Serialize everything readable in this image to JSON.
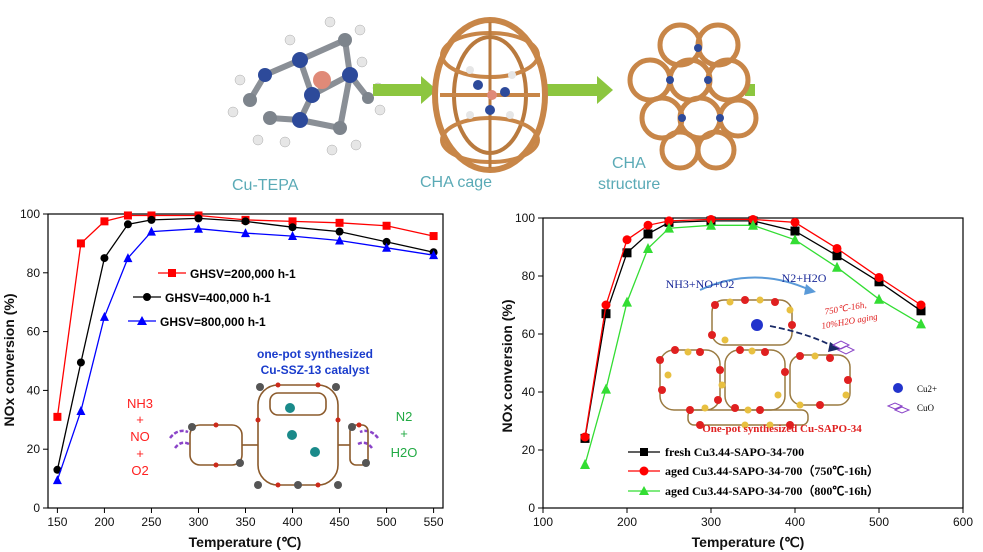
{
  "top_labels": {
    "molecule": "Cu-TEPA",
    "cage": "CHA cage",
    "structure_l1": "CHA",
    "structure_l2": "structure"
  },
  "chart_data": [
    {
      "type": "line",
      "xlabel": "Temperature (℃)",
      "ylabel": "NOx conversion (%)",
      "xlim": [
        140,
        560
      ],
      "ylim": [
        0,
        100
      ],
      "xticks": [
        150,
        200,
        250,
        300,
        350,
        400,
        450,
        500,
        550
      ],
      "yticks": [
        0,
        20,
        40,
        60,
        80,
        100
      ],
      "grid": false,
      "legend_position": "top-right",
      "series": [
        {
          "name": "GHSV=200,000 h-1",
          "color": "#ff0000",
          "marker": "square",
          "x": [
            150,
            175,
            200,
            225,
            250,
            300,
            350,
            400,
            450,
            500,
            550
          ],
          "y": [
            31,
            90,
            97.5,
            99.5,
            99.5,
            99.5,
            98,
            97.5,
            97,
            96,
            92.5
          ]
        },
        {
          "name": "GHSV=400,000 h-1",
          "color": "#000000",
          "marker": "circle",
          "x": [
            150,
            175,
            200,
            225,
            250,
            300,
            350,
            400,
            450,
            500,
            550
          ],
          "y": [
            13,
            49.5,
            85,
            96.5,
            98,
            98.5,
            97.5,
            95.5,
            94,
            90.5,
            87
          ]
        },
        {
          "name": "GHSV=800,000 h-1",
          "color": "#0000ff",
          "marker": "triangle",
          "x": [
            150,
            175,
            200,
            225,
            250,
            300,
            350,
            400,
            450,
            500,
            550
          ],
          "y": [
            9.5,
            33,
            65,
            85,
            94,
            95,
            93.5,
            92.5,
            91,
            88.5,
            86
          ]
        }
      ],
      "annotations": {
        "catalyst_l1": "one-pot synthesized",
        "catalyst_l2": "Cu-SSZ-13 catalyst",
        "reactant_nh3": "NH3",
        "reactant_plus1": "+",
        "reactant_no": "NO",
        "reactant_plus2": "+",
        "reactant_o2": "O2",
        "product_n2": "N2",
        "product_plus": "+",
        "product_h2o": "H2O"
      }
    },
    {
      "type": "line",
      "xlabel": "Temperature (℃)",
      "ylabel": "NOx conversion (%)",
      "xlim": [
        100,
        600
      ],
      "ylim": [
        0,
        100
      ],
      "xticks": [
        100,
        200,
        300,
        400,
        500,
        600
      ],
      "yticks": [
        0,
        20,
        40,
        60,
        80,
        100
      ],
      "grid": false,
      "legend_position": "bottom-left",
      "series": [
        {
          "name": "fresh Cu3.44-SAPO-34-700",
          "color": "#000000",
          "marker": "square",
          "x": [
            150,
            175,
            200,
            225,
            250,
            300,
            350,
            400,
            450,
            500,
            550
          ],
          "y": [
            24,
            67,
            88,
            94.5,
            98.5,
            99,
            99,
            95.5,
            87,
            78,
            68
          ]
        },
        {
          "name": "aged Cu3.44-SAPO-34-700（750℃-16h）",
          "color": "#ff0000",
          "marker": "circle",
          "x": [
            150,
            175,
            200,
            225,
            250,
            300,
            350,
            400,
            450,
            500,
            550
          ],
          "y": [
            24.5,
            70,
            92.5,
            97.5,
            99,
            99.5,
            99.5,
            98.5,
            89.5,
            79.5,
            70
          ]
        },
        {
          "name": "aged Cu3.44-SAPO-34-700（800℃-16h）",
          "color": "#33dd33",
          "marker": "triangle",
          "x": [
            150,
            175,
            200,
            225,
            250,
            300,
            350,
            400,
            450,
            500,
            550
          ],
          "y": [
            15,
            41,
            71,
            89.5,
            96.5,
            97.5,
            97.5,
            92.5,
            83,
            72,
            63.5
          ]
        }
      ],
      "annotations": {
        "reactants": "NH3+NO+O2",
        "products": "N2+H2O",
        "aging_l1": "750℃-16h,",
        "aging_l2": "10%H2O aging",
        "legend_cu": "Cu2+",
        "legend_cuo": "CuO",
        "caption": "One-pot synthesized Cu-SAPO-34"
      }
    }
  ],
  "colors": {
    "arrow": "#8cc63f",
    "framework": "#c88648",
    "top_label": "#5aaab6",
    "o_atom": "#e02020",
    "t_atom": "#e8c040"
  }
}
